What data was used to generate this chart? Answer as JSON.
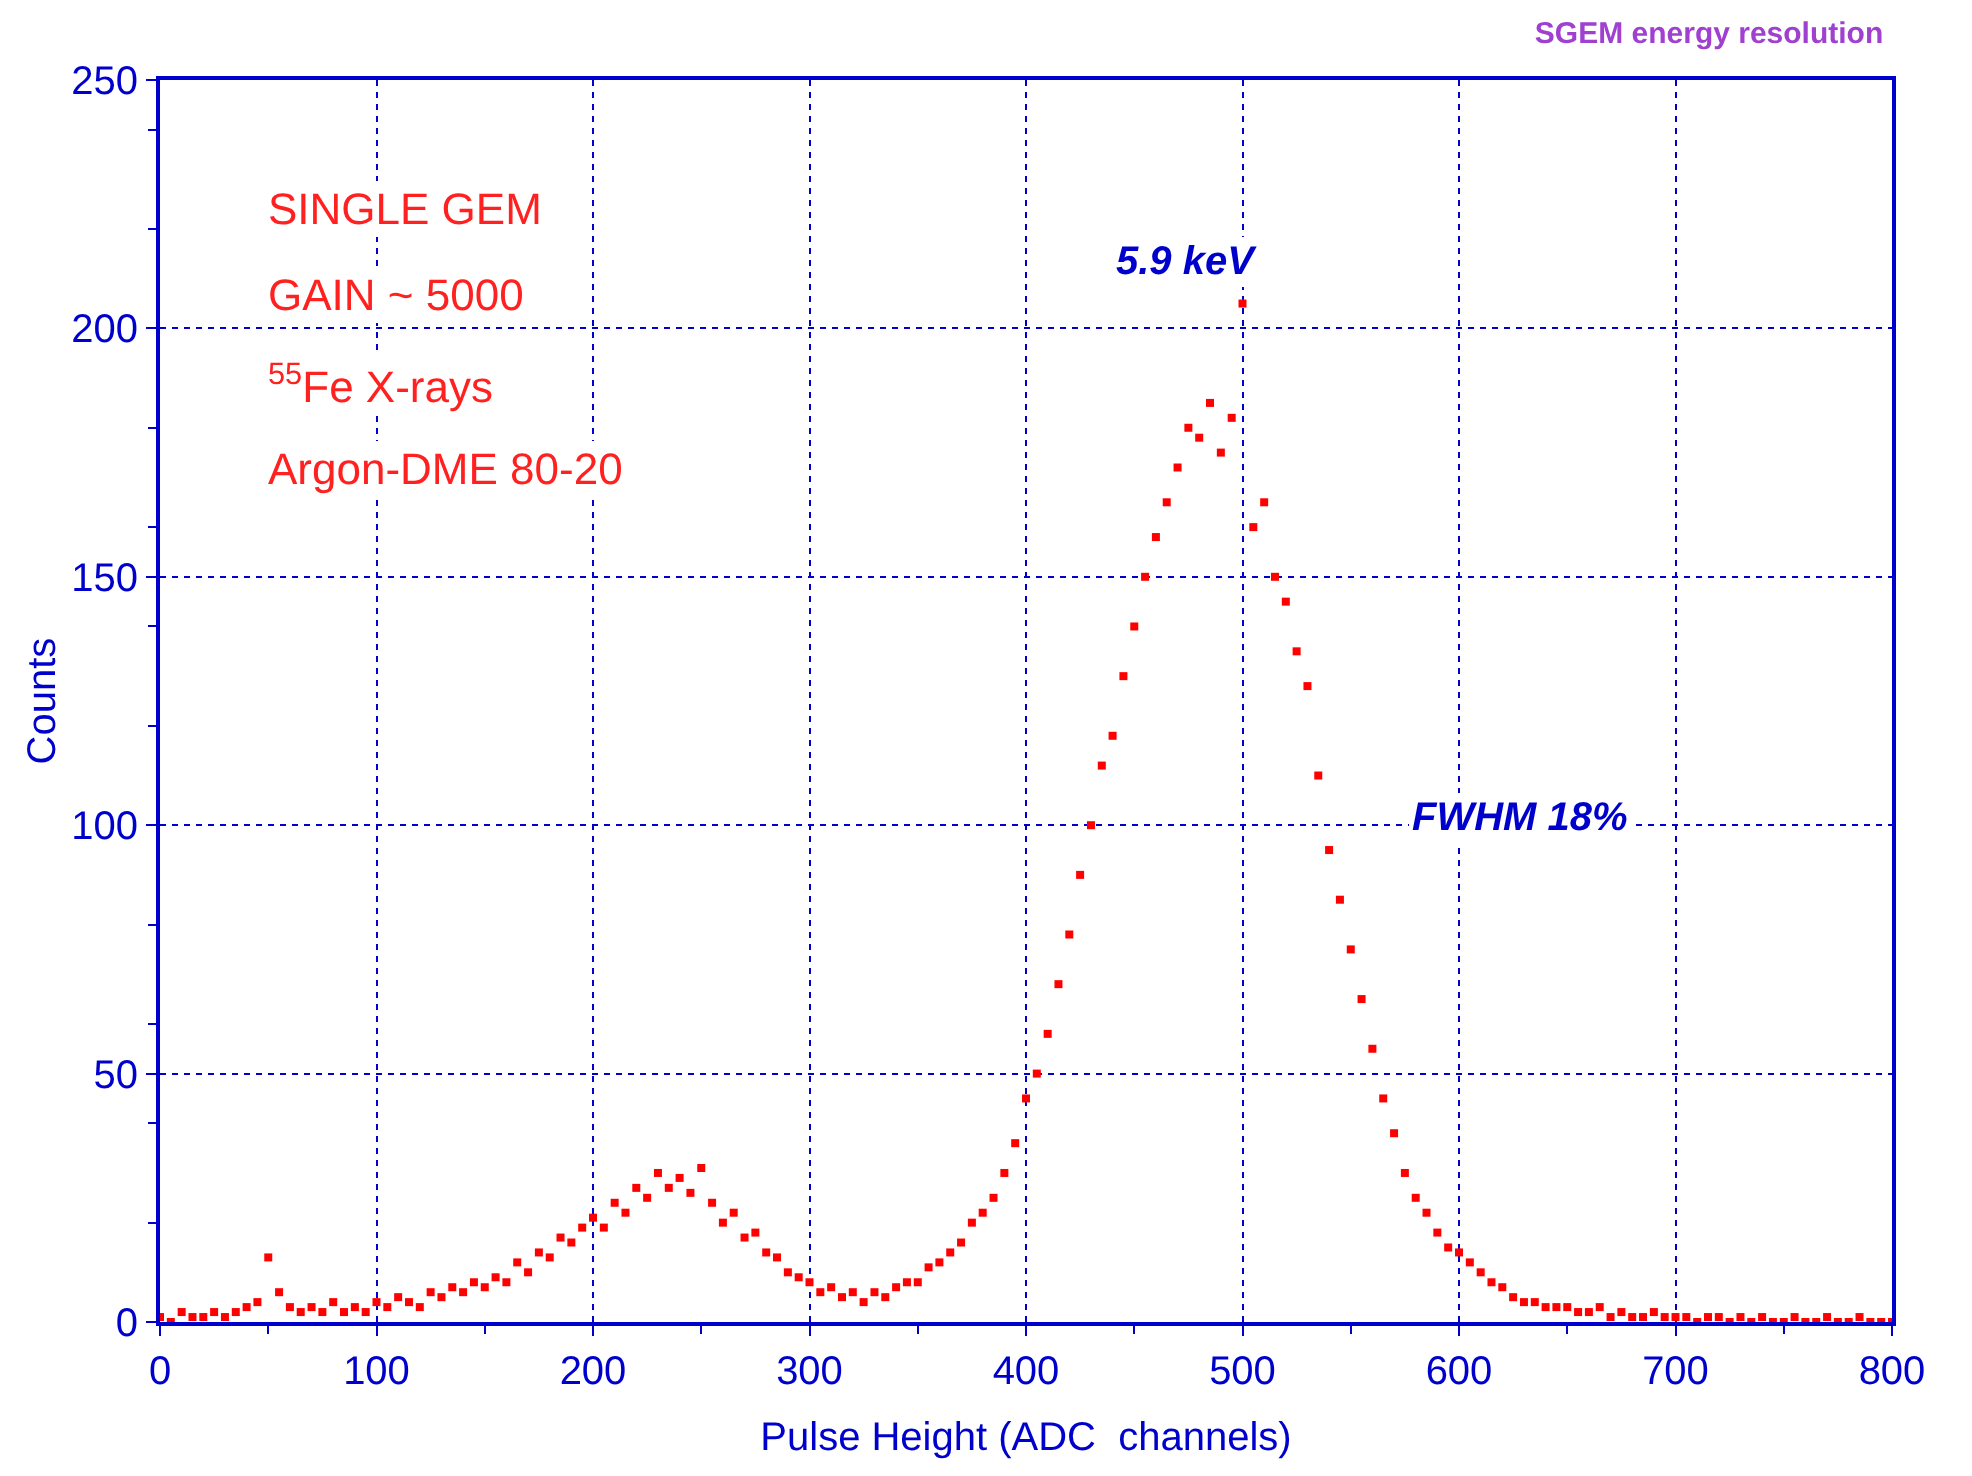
{
  "chart_data": {
    "type": "scatter",
    "title": "SGEM energy resolution",
    "xlabel": "Pulse Height (ADC  channels)",
    "ylabel": "Counts",
    "annotations": [
      "SINGLE GEM",
      "GAIN ~ 5000",
      "$^{55}$Fe X-rays",
      "Argon-DME 80-20",
      "5.9 keV",
      "FWHM 18%"
    ],
    "xlim": [
      0,
      800
    ],
    "xticks": [
      0,
      100,
      200,
      300,
      400,
      500,
      600,
      700,
      800
    ],
    "ylim": [
      0,
      250
    ],
    "yticks": [
      0,
      50,
      100,
      150,
      200,
      250
    ],
    "grid": true,
    "marker": "square",
    "series": [
      {
        "color": "#ff0000",
        "x": [
          0,
          5,
          10,
          15,
          20,
          25,
          30,
          35,
          40,
          45,
          50,
          55,
          60,
          65,
          70,
          75,
          80,
          85,
          90,
          95,
          100,
          105,
          110,
          115,
          120,
          125,
          130,
          135,
          140,
          145,
          150,
          155,
          160,
          165,
          170,
          175,
          180,
          185,
          190,
          195,
          200,
          205,
          210,
          215,
          220,
          225,
          230,
          235,
          240,
          245,
          250,
          255,
          260,
          265,
          270,
          275,
          280,
          285,
          290,
          295,
          300,
          305,
          310,
          315,
          320,
          325,
          330,
          335,
          340,
          345,
          350,
          355,
          360,
          365,
          370,
          375,
          380,
          385,
          390,
          395,
          400,
          405,
          410,
          415,
          420,
          425,
          430,
          435,
          440,
          445,
          450,
          455,
          460,
          465,
          470,
          475,
          480,
          485,
          490,
          495,
          500,
          505,
          510,
          515,
          520,
          525,
          530,
          535,
          540,
          545,
          550,
          555,
          560,
          565,
          570,
          575,
          580,
          585,
          590,
          595,
          600,
          605,
          610,
          615,
          620,
          625,
          630,
          635,
          640,
          645,
          650,
          655,
          660,
          665,
          670,
          675,
          680,
          685,
          690,
          695,
          700,
          705,
          710,
          715,
          720,
          725,
          730,
          735,
          740,
          745,
          750,
          755,
          760,
          765,
          770,
          775,
          780,
          785,
          790,
          795,
          800
        ],
        "values": [
          1,
          0,
          2,
          1,
          1,
          2,
          1,
          2,
          3,
          4,
          13,
          6,
          3,
          2,
          3,
          2,
          4,
          2,
          3,
          2,
          4,
          3,
          5,
          4,
          3,
          6,
          5,
          7,
          6,
          8,
          7,
          9,
          8,
          12,
          10,
          14,
          13,
          17,
          16,
          19,
          21,
          19,
          24,
          22,
          27,
          25,
          30,
          27,
          29,
          26,
          31,
          24,
          20,
          22,
          17,
          18,
          14,
          13,
          10,
          9,
          8,
          6,
          7,
          5,
          6,
          4,
          6,
          5,
          7,
          8,
          8,
          11,
          12,
          14,
          16,
          20,
          22,
          25,
          30,
          36,
          45,
          50,
          58,
          68,
          78,
          90,
          100,
          112,
          118,
          130,
          140,
          150,
          158,
          165,
          172,
          180,
          178,
          185,
          175,
          182,
          205,
          160,
          165,
          150,
          145,
          135,
          128,
          110,
          95,
          85,
          75,
          65,
          55,
          45,
          38,
          30,
          25,
          22,
          18,
          15,
          14,
          12,
          10,
          8,
          7,
          5,
          4,
          4,
          3,
          3,
          3,
          2,
          2,
          3,
          1,
          2,
          1,
          1,
          2,
          1,
          1,
          1,
          0,
          1,
          1,
          0,
          1,
          0,
          1,
          0,
          0,
          1,
          0,
          0,
          1,
          0,
          0,
          1,
          0,
          0,
          0
        ]
      }
    ]
  }
}
